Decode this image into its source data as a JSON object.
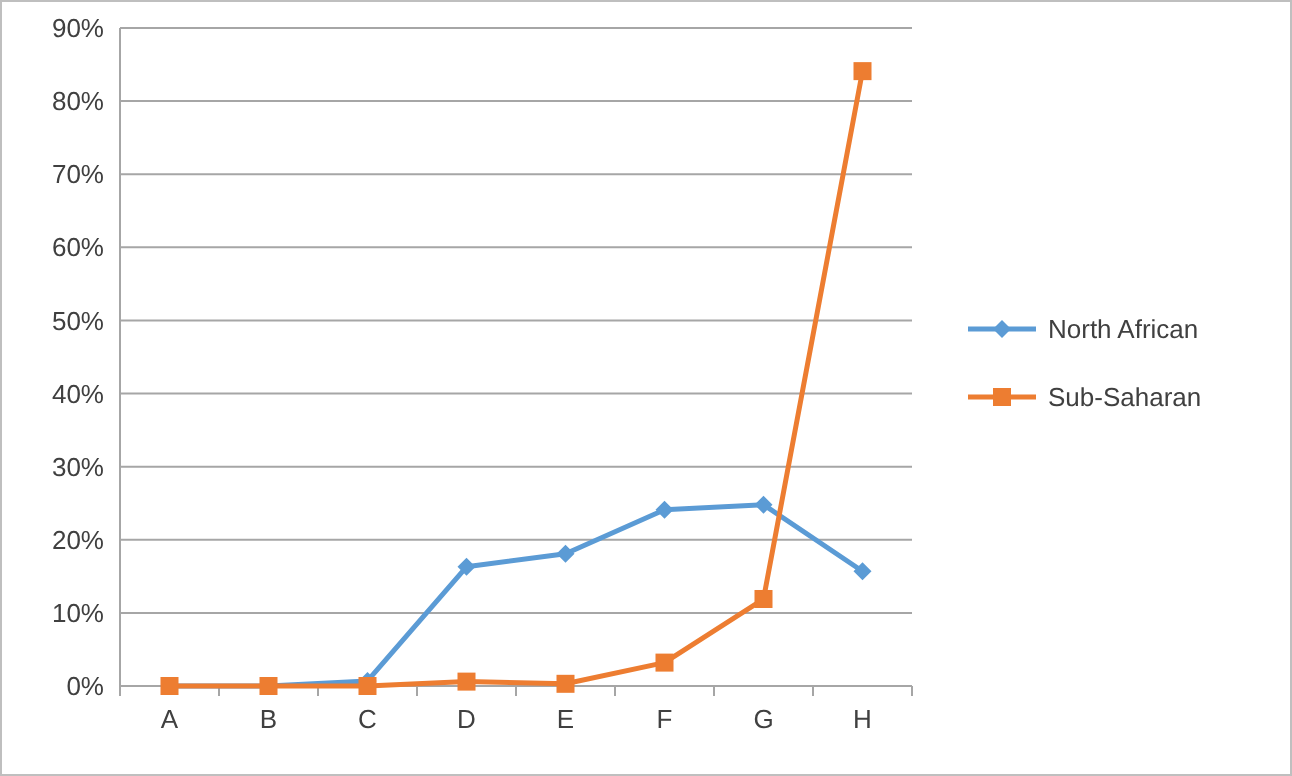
{
  "chart_data": {
    "type": "line",
    "categories": [
      "A",
      "B",
      "C",
      "D",
      "E",
      "F",
      "G",
      "H"
    ],
    "series": [
      {
        "name": "North African",
        "color": "#5b9bd5",
        "marker": "diamond",
        "values": [
          0,
          0,
          0.7,
          16.3,
          18.1,
          24.1,
          24.8,
          15.7
        ]
      },
      {
        "name": "Sub-Saharan",
        "color": "#ed7d31",
        "marker": "square",
        "values": [
          0,
          0,
          0,
          0.6,
          0.3,
          3.2,
          11.9,
          84.1
        ]
      }
    ],
    "ylim": [
      0,
      90
    ],
    "yticks": [
      {
        "value": 0,
        "label": "0%"
      },
      {
        "value": 10,
        "label": "10%"
      },
      {
        "value": 20,
        "label": "20%"
      },
      {
        "value": 30,
        "label": "30%"
      },
      {
        "value": 40,
        "label": "40%"
      },
      {
        "value": 50,
        "label": "50%"
      },
      {
        "value": 60,
        "label": "60%"
      },
      {
        "value": 70,
        "label": "70%"
      },
      {
        "value": 80,
        "label": "80%"
      },
      {
        "value": 90,
        "label": "90%"
      }
    ],
    "grid": "y",
    "legend": "right",
    "line_style": "solid"
  }
}
